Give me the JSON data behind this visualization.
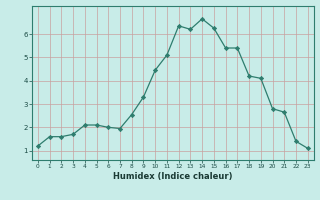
{
  "x": [
    0,
    1,
    2,
    3,
    4,
    5,
    6,
    7,
    8,
    9,
    10,
    11,
    12,
    13,
    14,
    15,
    16,
    17,
    18,
    19,
    20,
    21,
    22,
    23
  ],
  "y": [
    1.2,
    1.6,
    1.6,
    1.7,
    2.1,
    2.1,
    2.0,
    1.95,
    2.55,
    3.3,
    4.45,
    5.1,
    6.35,
    6.2,
    6.65,
    6.25,
    5.4,
    5.4,
    4.2,
    4.1,
    2.8,
    2.65,
    1.4,
    1.1
  ],
  "line_color": "#2e7d6e",
  "marker": "D",
  "marker_size": 2.2,
  "background_color": "#c8ece8",
  "grid_color": "#c8a0a0",
  "xlabel": "Humidex (Indice chaleur)",
  "xlim": [
    -0.5,
    23.5
  ],
  "ylim": [
    0.6,
    7.2
  ],
  "yticks": [
    1,
    2,
    3,
    4,
    5,
    6
  ],
  "xticks": [
    0,
    1,
    2,
    3,
    4,
    5,
    6,
    7,
    8,
    9,
    10,
    11,
    12,
    13,
    14,
    15,
    16,
    17,
    18,
    19,
    20,
    21,
    22,
    23
  ]
}
